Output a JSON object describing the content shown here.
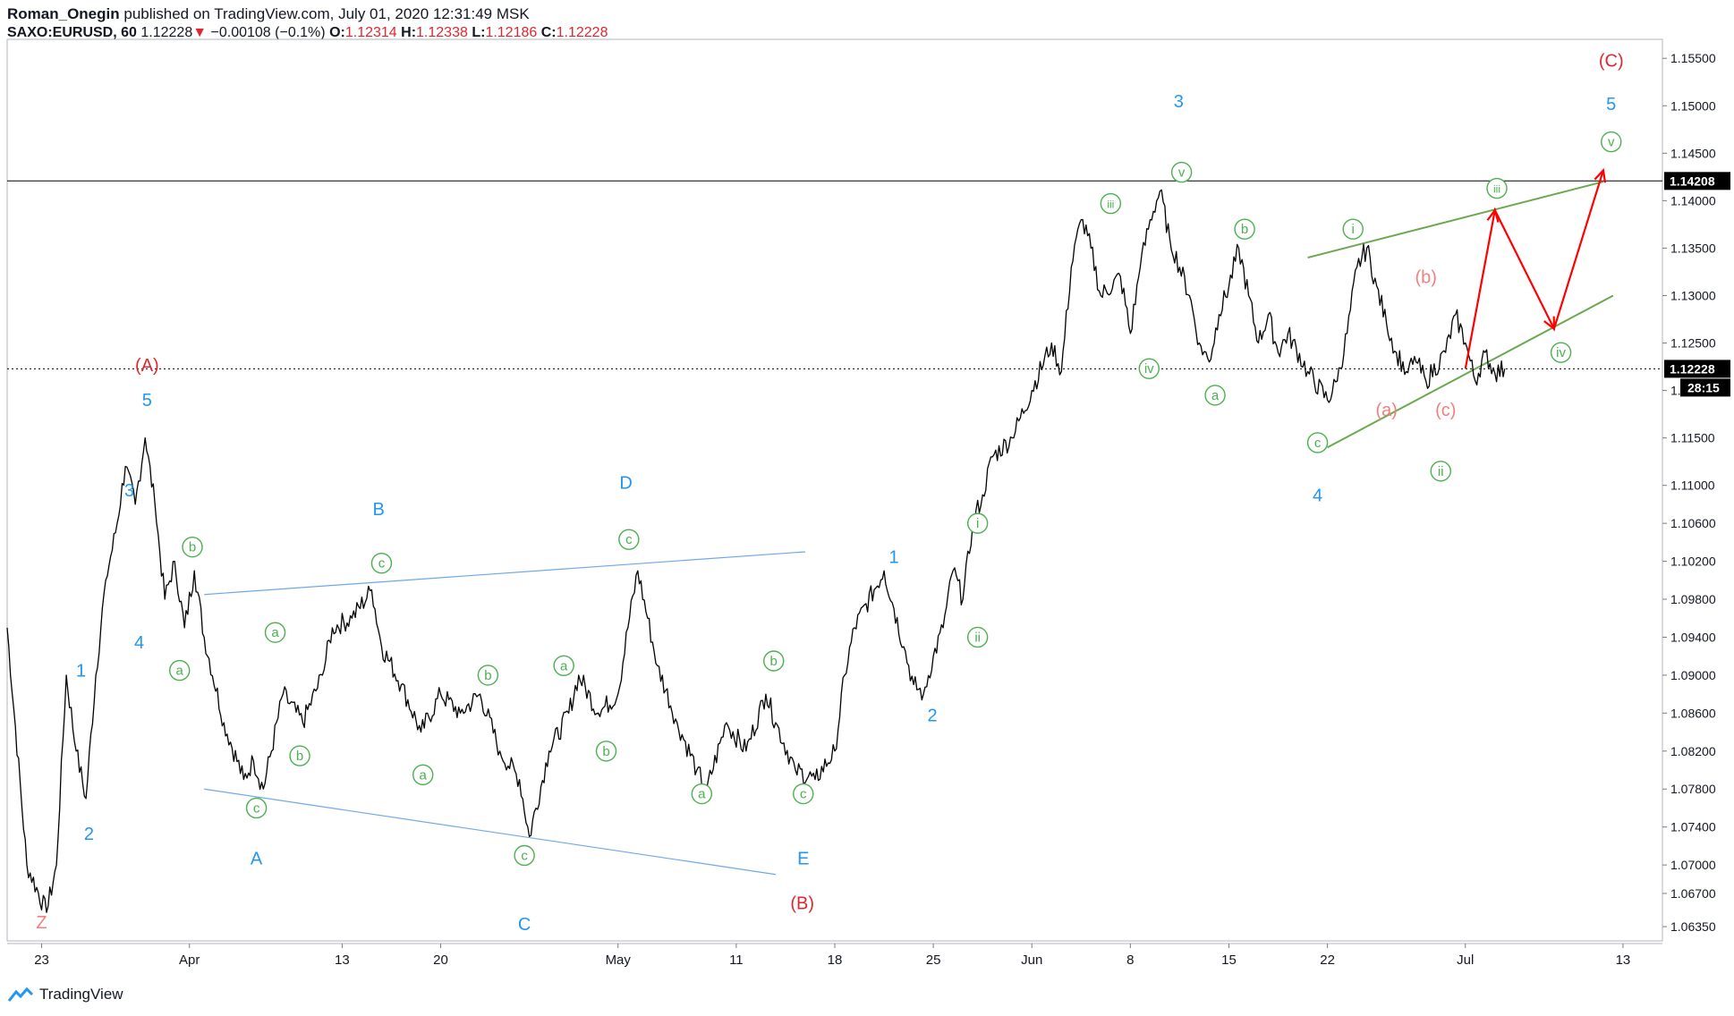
{
  "header": {
    "author": "Roman_Onegin",
    "published": "published on TradingView.com, July 01, 2020 12:31:49 MSK",
    "symbol": "SAXO:EURUSD, 60",
    "last": "1.12228",
    "arrow": "▼",
    "change": "−0.00108 (−0.1%)",
    "o_label": "O:",
    "o_value": "1.12314",
    "h_label": "H:",
    "h_value": "1.12338",
    "l_label": "L:",
    "l_value": "1.12186",
    "c_label": "C:",
    "c_value": "1.12228"
  },
  "footer": {
    "brand": "TradingView",
    "logo_icon": "tradingview-logo-icon"
  },
  "colors": {
    "price": "#000000",
    "blue_wave": "#2196f3",
    "red_wave": "#e0262e",
    "green_wave": "#4caf50",
    "pink_wave": "#f08080",
    "blue_line": "#6fa8e8",
    "green_line": "#6aa84f",
    "red_path": "#ff0000"
  },
  "chart_data": {
    "type": "line",
    "series": [
      {
        "values": [
          [
            0,
            1.095
          ],
          [
            2,
            1.07
          ],
          [
            4,
            1.065
          ],
          [
            5,
            1.07
          ],
          [
            6,
            1.09
          ],
          [
            7,
            1.082
          ],
          [
            8,
            1.077
          ],
          [
            9,
            1.09
          ],
          [
            10,
            1.1
          ],
          [
            11,
            1.105
          ],
          [
            12,
            1.112
          ],
          [
            13,
            1.108
          ],
          [
            14,
            1.115
          ],
          [
            15,
            1.108
          ],
          [
            16,
            1.098
          ],
          [
            17,
            1.102
          ],
          [
            18,
            1.095
          ],
          [
            19,
            1.101
          ],
          [
            20,
            1.094
          ],
          [
            22,
            1.085
          ],
          [
            24,
            1.079
          ],
          [
            25,
            1.081
          ],
          [
            26,
            1.078
          ],
          [
            28,
            1.088
          ],
          [
            30,
            1.085
          ],
          [
            32,
            1.09
          ],
          [
            33,
            1.095
          ],
          [
            35,
            1.096
          ],
          [
            37,
            1.099
          ],
          [
            38,
            1.093
          ],
          [
            40,
            1.089
          ],
          [
            42,
            1.084
          ],
          [
            44,
            1.088
          ],
          [
            46,
            1.086
          ],
          [
            48,
            1.088
          ],
          [
            50,
            1.082
          ],
          [
            52,
            1.079
          ],
          [
            53,
            1.073
          ],
          [
            55,
            1.082
          ],
          [
            57,
            1.086
          ],
          [
            58,
            1.09
          ],
          [
            60,
            1.086
          ],
          [
            62,
            1.088
          ],
          [
            63,
            1.095
          ],
          [
            64,
            1.101
          ],
          [
            65,
            1.096
          ],
          [
            66,
            1.091
          ],
          [
            68,
            1.085
          ],
          [
            70,
            1.08
          ],
          [
            71,
            1.078
          ],
          [
            73,
            1.085
          ],
          [
            75,
            1.082
          ],
          [
            77,
            1.088
          ],
          [
            78,
            1.085
          ],
          [
            80,
            1.08
          ],
          [
            82,
            1.079
          ],
          [
            84,
            1.082
          ],
          [
            85,
            1.09
          ],
          [
            86,
            1.095
          ],
          [
            88,
            1.099
          ],
          [
            89,
            1.101
          ],
          [
            90,
            1.097
          ],
          [
            91,
            1.093
          ],
          [
            92,
            1.089
          ],
          [
            93,
            1.088
          ],
          [
            94,
            1.092
          ],
          [
            95,
            1.095
          ],
          [
            96,
            1.101
          ],
          [
            97,
            1.098
          ],
          [
            98,
            1.106
          ],
          [
            99,
            1.109
          ],
          [
            100,
            1.113
          ],
          [
            102,
            1.115
          ],
          [
            104,
            1.12
          ],
          [
            106,
            1.125
          ],
          [
            107,
            1.122
          ],
          [
            108,
            1.133
          ],
          [
            109,
            1.138
          ],
          [
            110,
            1.135
          ],
          [
            111,
            1.13
          ],
          [
            113,
            1.132
          ],
          [
            114,
            1.126
          ],
          [
            115,
            1.133
          ],
          [
            116,
            1.138
          ],
          [
            117,
            1.141
          ],
          [
            118,
            1.136
          ],
          [
            119,
            1.133
          ],
          [
            120,
            1.13
          ],
          [
            121,
            1.125
          ],
          [
            122,
            1.123
          ],
          [
            123,
            1.128
          ],
          [
            124,
            1.131
          ],
          [
            125,
            1.135
          ],
          [
            126,
            1.13
          ],
          [
            127,
            1.125
          ],
          [
            128,
            1.128
          ],
          [
            129,
            1.124
          ],
          [
            130,
            1.126
          ],
          [
            132,
            1.122
          ],
          [
            134,
            1.119
          ],
          [
            135,
            1.121
          ],
          [
            136,
            1.126
          ],
          [
            137,
            1.133
          ],
          [
            138,
            1.135
          ],
          [
            139,
            1.131
          ],
          [
            140,
            1.127
          ],
          [
            141,
            1.124
          ],
          [
            142,
            1.122
          ],
          [
            143,
            1.123
          ],
          [
            144,
            1.121
          ],
          [
            146,
            1.124
          ],
          [
            147,
            1.128
          ],
          [
            148,
            1.125
          ],
          [
            149,
            1.121
          ],
          [
            150,
            1.124
          ],
          [
            151,
            1.1218
          ],
          [
            152,
            1.1223
          ]
        ]
      }
    ],
    "x_ticks": [
      {
        "x": 3.5,
        "label": "23"
      },
      {
        "x": 18.5,
        "label": "Apr"
      },
      {
        "x": 34,
        "label": "13"
      },
      {
        "x": 44,
        "label": "20"
      },
      {
        "x": 62,
        "label": "May"
      },
      {
        "x": 74,
        "label": "11"
      },
      {
        "x": 84,
        "label": "18"
      },
      {
        "x": 94,
        "label": "25"
      },
      {
        "x": 104,
        "label": "Jun"
      },
      {
        "x": 114,
        "label": "8"
      },
      {
        "x": 124,
        "label": "15"
      },
      {
        "x": 134,
        "label": "22"
      },
      {
        "x": 148,
        "label": "Jul"
      },
      {
        "x": 164,
        "label": "13"
      }
    ],
    "x_range": [
      0,
      168
    ],
    "y_ticks": [
      "1.15500",
      "1.15000",
      "1.14500",
      "1.14000",
      "1.13500",
      "1.13000",
      "1.12500",
      "1.12000",
      "1.11500",
      "1.11000",
      "1.10600",
      "1.10200",
      "1.09800",
      "1.09400",
      "1.09000",
      "1.08600",
      "1.08200",
      "1.07800",
      "1.07400",
      "1.07000",
      "1.06700",
      "1.06350"
    ],
    "ylim": [
      1.062,
      1.157
    ],
    "levels": [
      {
        "value": 1.14208,
        "label": "1.14208",
        "style": "solid"
      },
      {
        "value": 1.12228,
        "label": "1.12228",
        "style": "dotted",
        "countdown": "28:15"
      }
    ],
    "trendlines": [
      {
        "color": "blue",
        "points": [
          [
            20,
            1.0985
          ],
          [
            81,
            1.103
          ]
        ]
      },
      {
        "color": "blue",
        "points": [
          [
            20,
            1.078
          ],
          [
            78,
            1.069
          ]
        ]
      },
      {
        "color": "green",
        "points": [
          [
            132,
            1.134
          ],
          [
            162,
            1.142
          ]
        ]
      },
      {
        "color": "green",
        "points": [
          [
            134,
            1.114
          ],
          [
            163,
            1.13
          ]
        ]
      }
    ],
    "projection": [
      [
        148,
        1.1223
      ],
      [
        151,
        1.139
      ],
      [
        157,
        1.1265
      ],
      [
        162,
        1.1432
      ]
    ],
    "labels": [
      {
        "text": "Z",
        "x": 3.5,
        "y": 1.064,
        "color": "pink",
        "circled": false
      },
      {
        "text": "1",
        "x": 7.5,
        "y": 1.0905,
        "color": "blue",
        "circled": false
      },
      {
        "text": "2",
        "x": 8.3,
        "y": 1.0733,
        "color": "blue",
        "circled": false
      },
      {
        "text": "3",
        "x": 12.4,
        "y": 1.1095,
        "color": "blue",
        "circled": false
      },
      {
        "text": "4",
        "x": 13.4,
        "y": 1.0935,
        "color": "blue",
        "circled": false
      },
      {
        "text": "5",
        "x": 14.2,
        "y": 1.119,
        "color": "blue",
        "circled": false
      },
      {
        "text": "(A)",
        "x": 14.2,
        "y": 1.1227,
        "color": "red",
        "circled": false
      },
      {
        "text": "a",
        "x": 17.5,
        "y": 1.0905,
        "color": "green",
        "circled": true
      },
      {
        "text": "b",
        "x": 18.8,
        "y": 1.1035,
        "color": "green",
        "circled": true
      },
      {
        "text": "c",
        "x": 25.3,
        "y": 1.076,
        "color": "green",
        "circled": true
      },
      {
        "text": "A",
        "x": 25.3,
        "y": 1.0707,
        "color": "blue",
        "circled": false
      },
      {
        "text": "a",
        "x": 27.2,
        "y": 1.0945,
        "color": "green",
        "circled": true
      },
      {
        "text": "b",
        "x": 29.7,
        "y": 1.0815,
        "color": "green",
        "circled": true
      },
      {
        "text": "c",
        "x": 38,
        "y": 1.1018,
        "color": "green",
        "circled": true
      },
      {
        "text": "B",
        "x": 37.7,
        "y": 1.1075,
        "color": "blue",
        "circled": false
      },
      {
        "text": "a",
        "x": 42.2,
        "y": 1.0795,
        "color": "green",
        "circled": true
      },
      {
        "text": "b",
        "x": 48.8,
        "y": 1.09,
        "color": "green",
        "circled": true
      },
      {
        "text": "c",
        "x": 52.5,
        "y": 1.071,
        "color": "green",
        "circled": true
      },
      {
        "text": "C",
        "x": 52.5,
        "y": 1.0638,
        "color": "blue",
        "circled": false
      },
      {
        "text": "a",
        "x": 56.5,
        "y": 1.091,
        "color": "green",
        "circled": true
      },
      {
        "text": "b",
        "x": 60.8,
        "y": 1.082,
        "color": "green",
        "circled": true
      },
      {
        "text": "c",
        "x": 63.1,
        "y": 1.1043,
        "color": "green",
        "circled": true
      },
      {
        "text": "D",
        "x": 62.8,
        "y": 1.1103,
        "color": "blue",
        "circled": false
      },
      {
        "text": "a",
        "x": 70.5,
        "y": 1.0775,
        "color": "green",
        "circled": true
      },
      {
        "text": "b",
        "x": 77.8,
        "y": 1.0915,
        "color": "green",
        "circled": true
      },
      {
        "text": "c",
        "x": 80.8,
        "y": 1.0775,
        "color": "green",
        "circled": true
      },
      {
        "text": "E",
        "x": 80.8,
        "y": 1.0707,
        "color": "blue",
        "circled": false
      },
      {
        "text": "(B)",
        "x": 80.7,
        "y": 1.066,
        "color": "red",
        "circled": false
      },
      {
        "text": "1",
        "x": 90,
        "y": 1.1025,
        "color": "blue",
        "circled": false
      },
      {
        "text": "2",
        "x": 93.9,
        "y": 1.0858,
        "color": "blue",
        "circled": false
      },
      {
        "text": "i",
        "x": 98.5,
        "y": 1.106,
        "color": "green",
        "circled": true
      },
      {
        "text": "ii",
        "x": 98.5,
        "y": 1.094,
        "color": "green",
        "circled": true
      },
      {
        "text": "iii",
        "x": 112,
        "y": 1.1397,
        "color": "green",
        "circled": true
      },
      {
        "text": "iv",
        "x": 115.9,
        "y": 1.1223,
        "color": "green",
        "circled": true
      },
      {
        "text": "v",
        "x": 119.2,
        "y": 1.143,
        "color": "green",
        "circled": true
      },
      {
        "text": "3",
        "x": 118.9,
        "y": 1.1505,
        "color": "blue",
        "circled": false
      },
      {
        "text": "a",
        "x": 122.6,
        "y": 1.1195,
        "color": "green",
        "circled": true
      },
      {
        "text": "b",
        "x": 125.6,
        "y": 1.137,
        "color": "green",
        "circled": true
      },
      {
        "text": "c",
        "x": 133,
        "y": 1.1145,
        "color": "green",
        "circled": true
      },
      {
        "text": "4",
        "x": 133,
        "y": 1.109,
        "color": "blue",
        "circled": false
      },
      {
        "text": "i",
        "x": 136.6,
        "y": 1.137,
        "color": "green",
        "circled": true
      },
      {
        "text": "(b)",
        "x": 144,
        "y": 1.132,
        "color": "pink",
        "circled": false
      },
      {
        "text": "(a)",
        "x": 140,
        "y": 1.118,
        "color": "pink",
        "circled": false
      },
      {
        "text": "(c)",
        "x": 146,
        "y": 1.118,
        "color": "pink",
        "circled": false
      },
      {
        "text": "ii",
        "x": 145.5,
        "y": 1.1115,
        "color": "green",
        "circled": true
      },
      {
        "text": "iii",
        "x": 151.2,
        "y": 1.1413,
        "color": "green",
        "circled": true
      },
      {
        "text": "iv",
        "x": 157.7,
        "y": 1.124,
        "color": "green",
        "circled": true
      },
      {
        "text": "v",
        "x": 162.8,
        "y": 1.1462,
        "color": "green",
        "circled": true
      },
      {
        "text": "5",
        "x": 162.8,
        "y": 1.1502,
        "color": "blue",
        "circled": false
      },
      {
        "text": "(C)",
        "x": 162.8,
        "y": 1.1548,
        "color": "red",
        "circled": false
      }
    ]
  }
}
